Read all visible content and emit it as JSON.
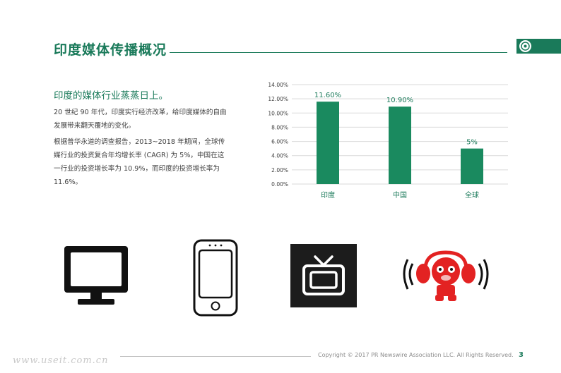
{
  "header": {
    "title": "印度媒体传播概况"
  },
  "brand": {
    "accent_color": "#1a7a5a",
    "logo_icon": "emblem-icon"
  },
  "text": {
    "subheading": "印度的媒体行业蒸蒸日上。",
    "para1": "20 世纪 90 年代，印度实行经济改革，给印度媒体的自由发展带来翻天覆地的变化。",
    "para2": "根据普华永道的调查报告，2013~2018 年期间，全球传媒行业的投资复合年均增长率 (CAGR) 为 5%，中国在这一行业的投资增长率为 10.9%，而印度的投资增长率为 11.6%。"
  },
  "chart_data": {
    "type": "bar",
    "categories": [
      "印度",
      "中国",
      "全球"
    ],
    "values": [
      11.6,
      10.9,
      5
    ],
    "data_labels": [
      "11.60%",
      "10.90%",
      "5%"
    ],
    "yticks": [
      "0.00%",
      "2.00%",
      "4.00%",
      "6.00%",
      "8.00%",
      "10.00%",
      "12.00%",
      "14.00%"
    ],
    "ylim": [
      0,
      14
    ],
    "grid": true,
    "bar_color": "#1a8a5f",
    "title": "",
    "xlabel": "",
    "ylabel": ""
  },
  "icons": [
    "monitor-icon",
    "smartphone-icon",
    "tv-icon",
    "radio-headphones-icon"
  ],
  "footer": {
    "copyright": "Copyright © 2017 PR Newswire Association LLC. All Rights Reserved.",
    "page_number": "3",
    "watermark": "www.useit.com.cn"
  }
}
